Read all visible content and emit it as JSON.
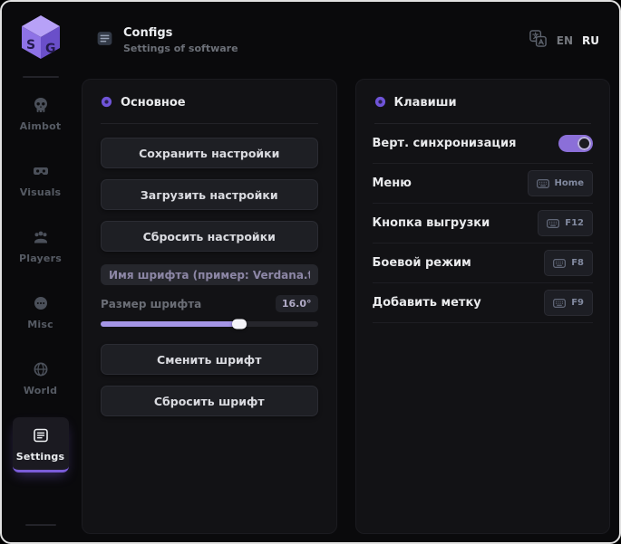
{
  "app": {
    "title": "Configs",
    "subtitle": "Settings of software"
  },
  "language": {
    "options": [
      "EN",
      "RU"
    ],
    "active": "RU"
  },
  "sidebar": {
    "items": [
      {
        "label": "Aimbot",
        "icon": "skull-icon",
        "active": false
      },
      {
        "label": "Visuals",
        "icon": "vr-goggles-icon",
        "active": false
      },
      {
        "label": "Players",
        "icon": "players-icon",
        "active": false
      },
      {
        "label": "Misc",
        "icon": "misc-icon",
        "active": false
      },
      {
        "label": "World",
        "icon": "world-icon",
        "active": false
      },
      {
        "label": "Settings",
        "icon": "settings-icon",
        "active": true
      }
    ]
  },
  "main_panel": {
    "title": "Основное",
    "buttons_top": [
      "Сохранить настройки",
      "Загрузить настройки",
      "Сбросить настройки"
    ],
    "font_name_placeholder": "Имя шрифта (пример: Verdana.ttf)",
    "font_size_label": "Размер шрифта",
    "font_size_value": "16.0°",
    "font_size_percent": 64,
    "buttons_bottom": [
      "Сменить шрифт",
      "Сбросить шрифт"
    ]
  },
  "keys_panel": {
    "title": "Клавиши",
    "toggle_row": {
      "label": "Верт. синхронизация",
      "enabled": true
    },
    "key_rows": [
      {
        "label": "Меню",
        "key": "Home"
      },
      {
        "label": "Кнопка выгрузки",
        "key": "F12"
      },
      {
        "label": "Боевой режим",
        "key": "F8"
      },
      {
        "label": "Добавить метку",
        "key": "F9"
      }
    ]
  },
  "colors": {
    "accent": "#8e72e6",
    "toggle_on": "#8b6fd8",
    "slider_fill": "#a495e6"
  }
}
